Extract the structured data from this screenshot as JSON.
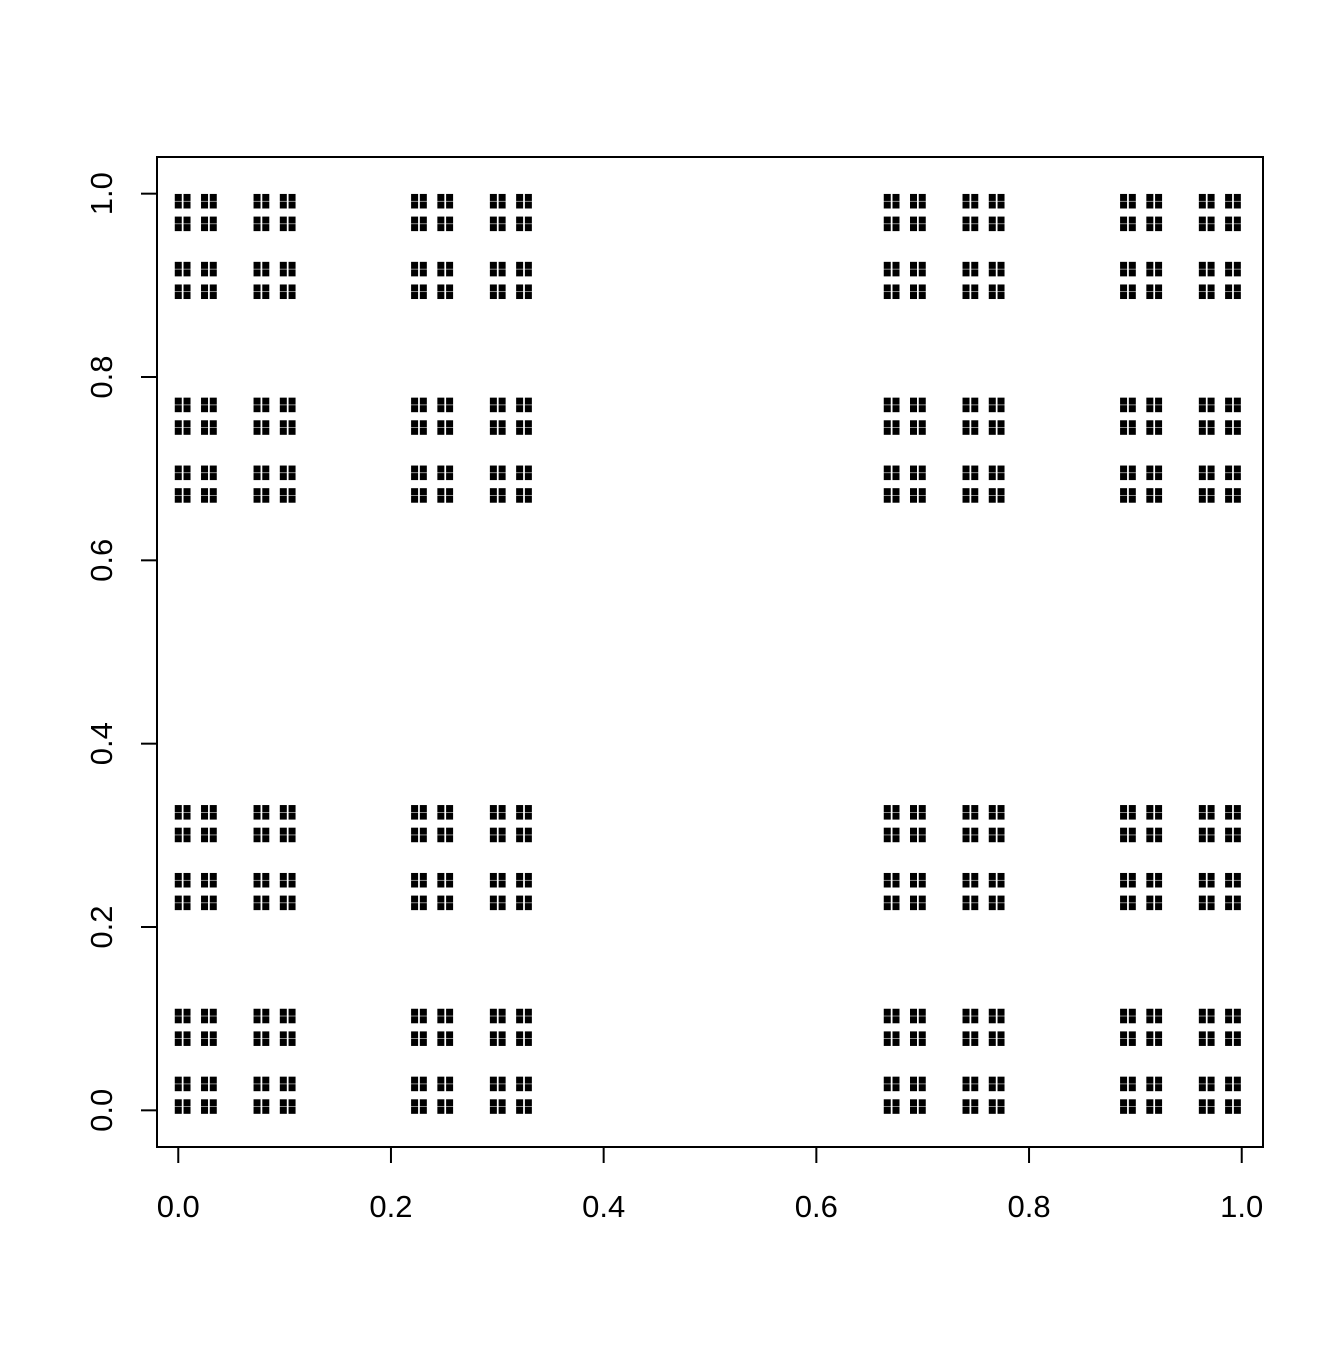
{
  "chart_data": {
    "type": "scatter",
    "title": "",
    "xlabel": "",
    "ylabel": "",
    "xlim": [
      -0.02,
      1.02
    ],
    "ylim": [
      -0.04,
      1.04
    ],
    "grid": false,
    "legend": "none",
    "point_marker": "filled-square",
    "point_color": "#000000",
    "construction": "Cantor dust, level 5: all points (x, y) where x and y range over the left endpoints (sum of d_k/3^k, d_k in {0,2}) of the 5th-level middle-thirds Cantor set",
    "x": [
      0,
      0.00823,
      0.02469,
      0.03292,
      0.07407,
      0.0823,
      0.09877,
      0.107,
      0.22222,
      0.23045,
      0.24691,
      0.25514,
      0.2963,
      0.30453,
      0.32099,
      0.32922,
      0.66667,
      0.6749,
      0.69136,
      0.69959,
      0.74074,
      0.74897,
      0.76543,
      0.77366,
      0.88889,
      0.89712,
      0.91358,
      0.92181,
      0.96296,
      0.97119,
      0.98765,
      0.99588
    ],
    "y": [
      0,
      0.00823,
      0.02469,
      0.03292,
      0.07407,
      0.0823,
      0.09877,
      0.107,
      0.22222,
      0.23045,
      0.24691,
      0.25514,
      0.2963,
      0.30453,
      0.32099,
      0.32922,
      0.66667,
      0.6749,
      0.69136,
      0.69959,
      0.74074,
      0.74897,
      0.76543,
      0.77366,
      0.88889,
      0.89712,
      0.91358,
      0.92181,
      0.96296,
      0.97119,
      0.98765,
      0.99588
    ],
    "x_ticks": [
      {
        "value": 0.0,
        "label": "0.0"
      },
      {
        "value": 0.2,
        "label": "0.2"
      },
      {
        "value": 0.4,
        "label": "0.4"
      },
      {
        "value": 0.6,
        "label": "0.6"
      },
      {
        "value": 0.8,
        "label": "0.8"
      },
      {
        "value": 1.0,
        "label": "1.0"
      }
    ],
    "y_ticks": [
      {
        "value": 0.0,
        "label": "0.0"
      },
      {
        "value": 0.2,
        "label": "0.2"
      },
      {
        "value": 0.4,
        "label": "0.4"
      },
      {
        "value": 0.6,
        "label": "0.6"
      },
      {
        "value": 0.8,
        "label": "0.8"
      },
      {
        "value": 1.0,
        "label": "1.0"
      }
    ]
  }
}
